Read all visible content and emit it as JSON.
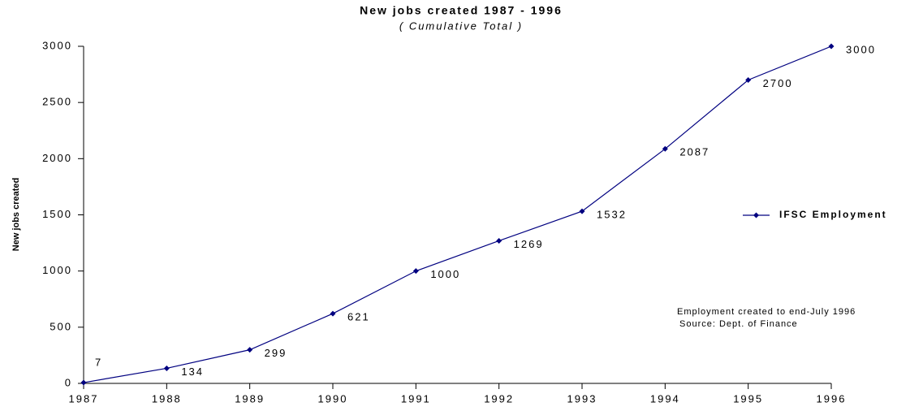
{
  "chart_data": {
    "type": "line",
    "title": "New jobs created 1987 - 1996",
    "subtitle": "( Cumulative Total )",
    "y_label": "New jobs created",
    "x": [
      1987,
      1988,
      1989,
      1990,
      1991,
      1992,
      1993,
      1994,
      1995,
      1996
    ],
    "series": [
      {
        "name": "IFSC Employment",
        "color": "#000080",
        "values": [
          7,
          134,
          299,
          621,
          1000,
          1269,
          1532,
          2087,
          2700,
          3000
        ]
      }
    ],
    "xlim": [
      1987,
      1996
    ],
    "xticks": [
      1987,
      1988,
      1989,
      1990,
      1991,
      1992,
      1993,
      1994,
      1995,
      1996
    ],
    "ylim": [
      0,
      3000
    ],
    "yticks": [
      0,
      500,
      1000,
      1500,
      2000,
      2500,
      3000
    ],
    "legend": "right",
    "annotations": [
      "Employment created to end-July 1996",
      "Source: Dept. of Finance"
    ]
  }
}
